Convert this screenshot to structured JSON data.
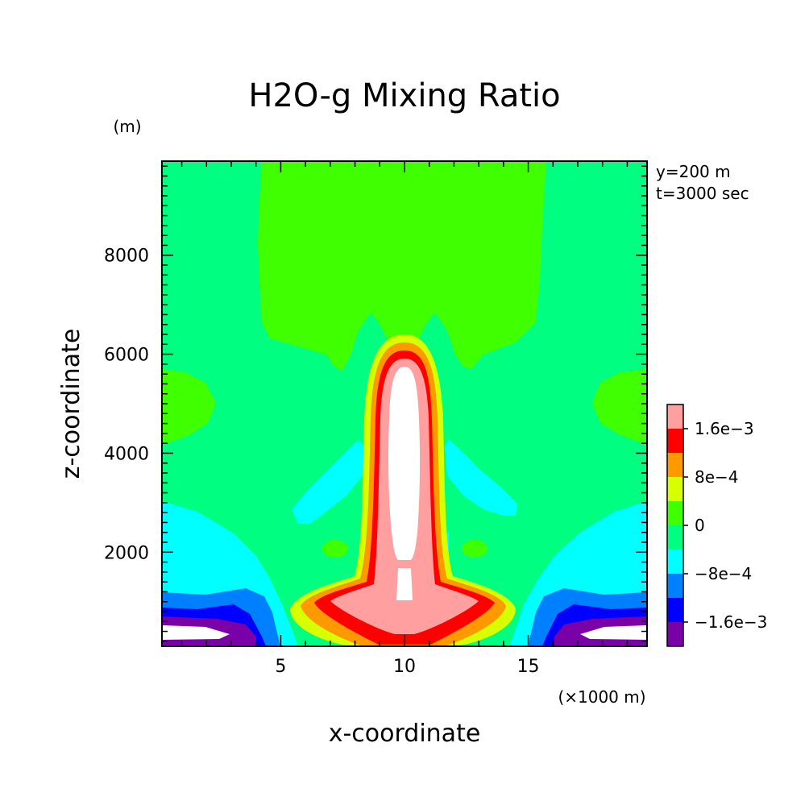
{
  "chart_data": {
    "type": "heatmap",
    "title": "H2O-g Mixing Ratio",
    "xlabel": "x-coordinate",
    "ylabel": "z-coordinate",
    "x_unit": "(×1000 m)",
    "y_unit": "(m)",
    "annotations": [
      "y=200 m",
      "t=3000 sec"
    ],
    "xlim": [
      0.2,
      19.8
    ],
    "ylim": [
      100,
      9900
    ],
    "x_ticks": [
      5,
      10,
      15
    ],
    "y_ticks": [
      2000,
      4000,
      6000,
      8000
    ],
    "x_tick_labels": [
      "5",
      "10",
      "15"
    ],
    "y_tick_labels": [
      "2000",
      "4000",
      "6000",
      "8000"
    ],
    "colorbar": {
      "levels": [
        -0.002,
        -0.0016,
        -0.0012,
        -0.0008,
        -0.0004,
        0,
        0.0004,
        0.0008,
        0.0012,
        0.0016,
        0.002
      ],
      "colors": [
        "#7a00a8",
        "#0000ff",
        "#0080ff",
        "#00ffff",
        "#00ff80",
        "#40ff00",
        "#d8ff00",
        "#ff9900",
        "#ff0000",
        "#ff9f9f"
      ],
      "tick_values": [
        -0.0016,
        -0.0008,
        0,
        0.0008,
        0.0016
      ],
      "tick_labels": [
        "−1.6e−3",
        "−8e−4",
        "0",
        "8e−4",
        "1.6e−3"
      ]
    },
    "background_level_color": "#00ff80",
    "over_color": "#ffffff",
    "legend_position": "right"
  }
}
